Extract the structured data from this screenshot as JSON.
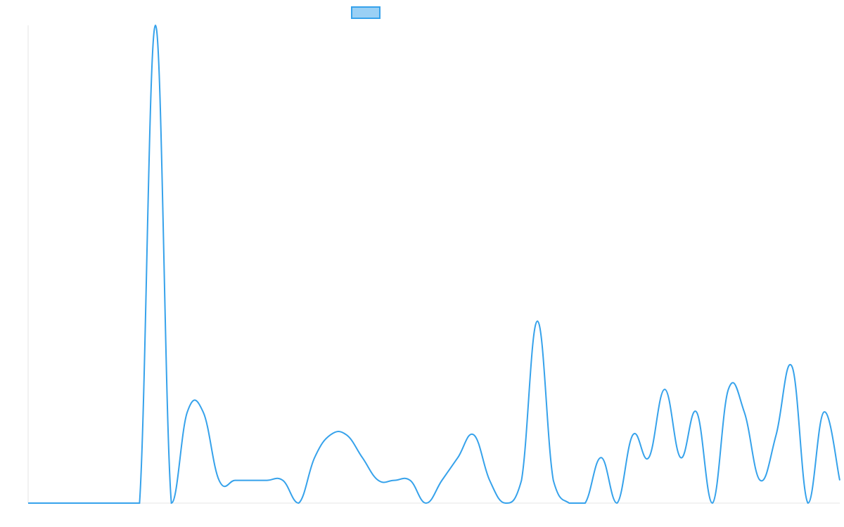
{
  "chart_data": {
    "type": "line",
    "categories": [
      null,
      null,
      null,
      null,
      null,
      null,
      null,
      null,
      null,
      null,
      null,
      null,
      null,
      null,
      null,
      null,
      null,
      null,
      null,
      null,
      null,
      null,
      null,
      null,
      null,
      null,
      null,
      null,
      null,
      null,
      null,
      null,
      null,
      null,
      null,
      null,
      null,
      null,
      null,
      null,
      null,
      null,
      null,
      null,
      null,
      null,
      null,
      null,
      null,
      null,
      null,
      null
    ],
    "series": [
      {
        "color": "#36a2eb",
        "values": [
          0,
          0,
          0,
          0,
          0,
          0,
          0,
          0,
          21,
          0,
          4,
          4,
          1,
          1,
          1,
          1,
          1,
          0,
          2,
          3,
          3,
          2,
          1,
          1,
          1,
          0,
          1,
          2,
          3,
          1,
          0,
          1,
          8,
          1,
          0,
          0,
          2,
          0,
          3,
          2,
          5,
          2,
          4,
          0,
          5,
          4,
          1,
          3,
          6,
          0,
          4,
          1
        ]
      }
    ],
    "ylim": [
      0,
      21
    ],
    "legend": "top"
  }
}
